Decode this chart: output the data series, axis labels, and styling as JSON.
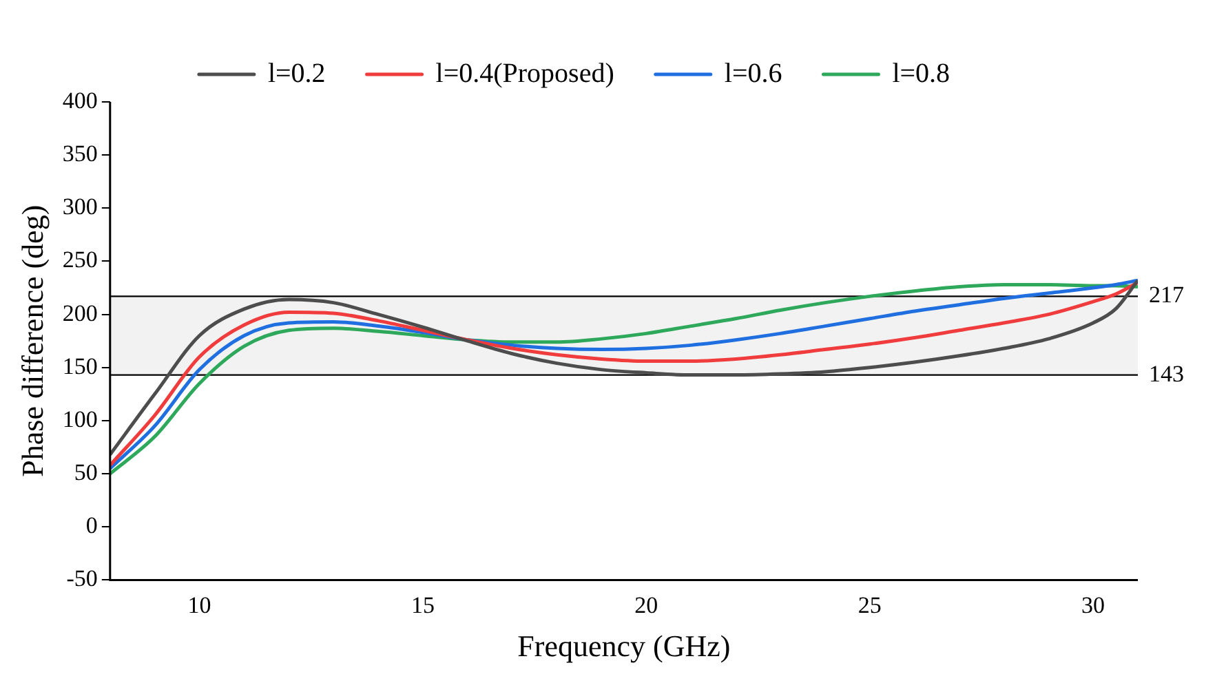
{
  "chart_data": {
    "type": "line",
    "xlabel": "Frequency (GHz)",
    "ylabel": "Phase difference (deg)",
    "x": [
      8,
      9,
      10,
      11,
      12,
      13,
      14,
      15,
      16,
      17,
      18,
      19,
      20,
      21,
      22,
      23,
      24,
      25,
      26,
      27,
      28,
      29,
      30,
      30.5,
      31
    ],
    "series": [
      {
        "name": "l=0.2",
        "color": "#4d4d4d",
        "values": [
          68,
          125,
          180,
          205,
          214,
          211,
          200,
          188,
          175,
          163,
          154,
          148,
          145,
          143,
          143,
          144,
          146,
          150,
          155,
          161,
          168,
          177,
          192,
          205,
          232
        ]
      },
      {
        "name": "l=0.4(Proposed)",
        "color": "#f03c3c",
        "values": [
          58,
          105,
          160,
          190,
          202,
          201,
          194,
          185,
          176,
          168,
          162,
          158,
          156,
          156,
          158,
          162,
          167,
          172,
          178,
          185,
          192,
          200,
          212,
          219,
          230
        ]
      },
      {
        "name": "l=0.6",
        "color": "#1f6fe0",
        "values": [
          55,
          95,
          148,
          180,
          192,
          193,
          189,
          183,
          176,
          171,
          168,
          167,
          168,
          171,
          176,
          182,
          189,
          196,
          203,
          209,
          215,
          220,
          225,
          228,
          232
        ]
      },
      {
        "name": "l=0.8",
        "color": "#2ea85a",
        "values": [
          50,
          85,
          135,
          170,
          185,
          187,
          184,
          180,
          176,
          174,
          174,
          177,
          182,
          189,
          196,
          204,
          211,
          217,
          222,
          226,
          228,
          228,
          227,
          227,
          226
        ]
      }
    ],
    "xlim": [
      8,
      31
    ],
    "ylim": [
      -50,
      400
    ],
    "xticks": [
      10,
      15,
      20,
      25,
      30
    ],
    "yticks": [
      -50,
      0,
      50,
      100,
      150,
      200,
      250,
      300,
      350,
      400
    ],
    "bands": [
      {
        "axis": "y",
        "from": 143,
        "to": 217,
        "color": "#f2f2f2"
      }
    ],
    "ref_lines": [
      {
        "axis": "y",
        "value": 217,
        "label": "217",
        "color": "#000000"
      },
      {
        "axis": "y",
        "value": 143,
        "label": "143",
        "color": "#000000"
      }
    ],
    "legend": "top",
    "grid": false
  }
}
